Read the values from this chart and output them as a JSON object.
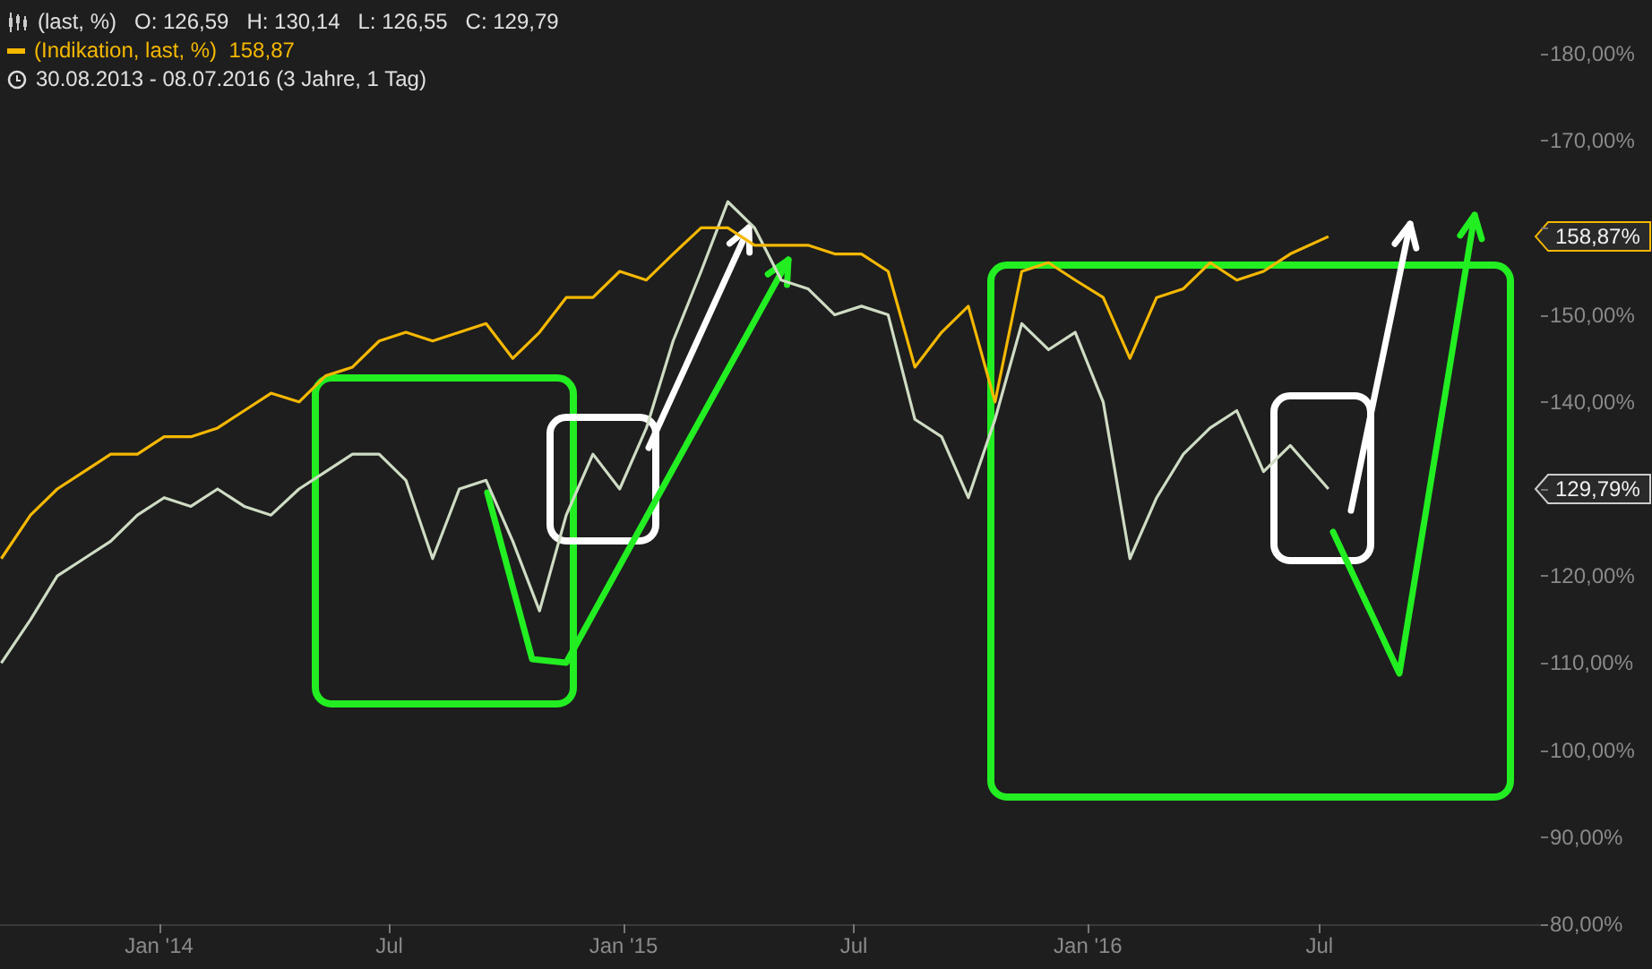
{
  "chart_data": {
    "type": "line",
    "annotations": [
      "(last, %)   O: 126,59   H: 130,14   L: 126,55   C: 129,79",
      "(Indikation, last, %)  158,87",
      "30.08.2013 - 08.07.2016 (3 Jahre, 1 Tag)",
      "158,87%",
      "129,79%"
    ],
    "x": [
      "2013-08-30",
      "2013-09-22",
      "2013-10-13",
      "2013-11-03",
      "2013-11-24",
      "2013-12-15",
      "2014-01-05",
      "2014-01-26",
      "2014-02-16",
      "2014-03-09",
      "2014-03-30",
      "2014-04-21",
      "2014-05-12",
      "2014-06-02",
      "2014-06-23",
      "2014-07-14",
      "2014-08-04",
      "2014-08-25",
      "2014-09-15",
      "2014-10-06",
      "2014-10-27",
      "2014-11-17",
      "2014-12-08",
      "2014-12-29",
      "2015-01-19",
      "2015-02-09",
      "2015-03-03",
      "2015-03-24",
      "2015-04-14",
      "2015-05-05",
      "2015-05-26",
      "2015-06-16",
      "2015-07-07",
      "2015-07-28",
      "2015-08-18",
      "2015-09-08",
      "2015-09-29",
      "2015-10-20",
      "2015-11-10",
      "2015-12-01",
      "2015-12-22",
      "2016-01-13",
      "2016-02-03",
      "2016-02-24",
      "2016-03-16",
      "2016-04-06",
      "2016-04-27",
      "2016-05-18",
      "2016-06-08",
      "2016-07-08"
    ],
    "series": [
      {
        "color": "#cfdcc4",
        "values": [
          110,
          115,
          120,
          122,
          124,
          127,
          129,
          128,
          130,
          128,
          127,
          130,
          132,
          134,
          134,
          131,
          122,
          130,
          131,
          124,
          116,
          127,
          134,
          130,
          137,
          147,
          155,
          163,
          160,
          154,
          153,
          150,
          151,
          150,
          138,
          136,
          129,
          138,
          149,
          146,
          148,
          140,
          122,
          129,
          134,
          137,
          139,
          132,
          135,
          130
        ]
      },
      {
        "color": "#f5b800",
        "values": [
          122,
          127,
          130,
          132,
          134,
          134,
          136,
          136,
          137,
          139,
          141,
          140,
          143,
          144,
          147,
          148,
          147,
          148,
          149,
          145,
          148,
          152,
          152,
          155,
          154,
          157,
          160,
          160,
          158,
          158,
          158,
          157,
          157,
          155,
          144,
          148,
          151,
          140,
          155,
          156,
          154,
          152,
          145,
          152,
          153,
          156,
          154,
          155,
          157,
          159
        ]
      }
    ],
    "xlim": [
      "2013-08-29",
      "2016-12-22"
    ],
    "xticks": [
      {
        "value": "2014-01-01",
        "label": "Jan '14"
      },
      {
        "value": "2014-07-01",
        "label": "Jul"
      },
      {
        "value": "2015-01-01",
        "label": "Jan '15"
      },
      {
        "value": "2015-07-01",
        "label": "Jul"
      },
      {
        "value": "2016-01-01",
        "label": "Jan '16"
      },
      {
        "value": "2016-07-01",
        "label": "Jul"
      }
    ],
    "ylim": [
      80,
      180
    ],
    "yticks": [
      {
        "value": 80,
        "label": "80,00%"
      },
      {
        "value": 90,
        "label": "90,00%"
      },
      {
        "value": 100,
        "label": "100,00%"
      },
      {
        "value": 110,
        "label": "110,00%"
      },
      {
        "value": 120,
        "label": "120,00%"
      },
      {
        "value": 130,
        "label": null
      },
      {
        "value": 140,
        "label": "140,00%"
      },
      {
        "value": 150,
        "label": "150,00%"
      },
      {
        "value": 160,
        "label": null
      },
      {
        "value": 170,
        "label": "170,00%"
      },
      {
        "value": 180,
        "label": "180,00%"
      }
    ],
    "grid": false,
    "marker": "none",
    "line_style": "solid"
  }
}
